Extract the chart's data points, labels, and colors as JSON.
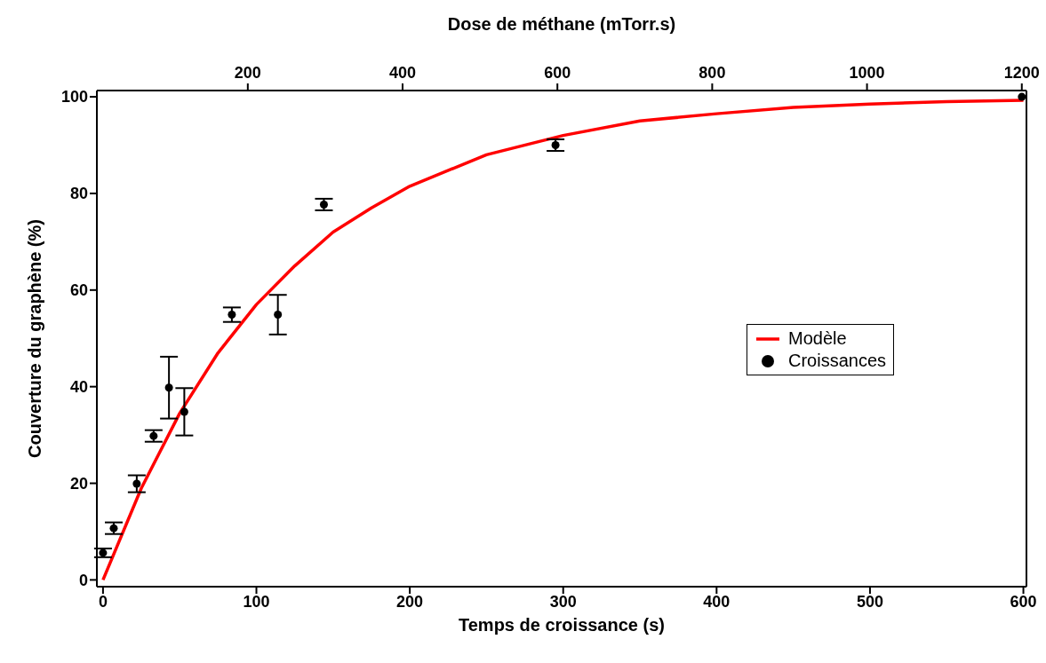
{
  "chart_data": {
    "type": "scatter",
    "xlabel": "Temps de croissance (s)",
    "x2label": "Dose de méthane (mTorr.s)",
    "ylabel": "Couverture du graphène (%)",
    "xlim": [
      -4,
      602
    ],
    "xticks": [
      0,
      100,
      200,
      300,
      400,
      500,
      600
    ],
    "x2lim": [
      5,
      1206
    ],
    "x2ticks": [
      200,
      400,
      600,
      800,
      1000,
      1200
    ],
    "ylim": [
      -1.4,
      101.3
    ],
    "yticks": [
      0,
      20,
      40,
      60,
      80,
      100
    ],
    "grid": false,
    "legend": "right",
    "series": [
      {
        "name": "Modèle",
        "type": "line",
        "color": "#ff0000",
        "marker": "none",
        "line_style": "solid",
        "x": [
          0,
          25,
          50,
          75,
          100,
          125,
          150,
          175,
          200,
          250,
          300,
          350,
          400,
          450,
          500,
          550,
          600
        ],
        "values": [
          0,
          19,
          34.5,
          47,
          57,
          65,
          72,
          77,
          81.5,
          88,
          92,
          95,
          96.5,
          97.8,
          98.5,
          99,
          99.3
        ]
      },
      {
        "name": "Croissances",
        "color": "#000000",
        "marker": "circle",
        "x": [
          0,
          7,
          22,
          33,
          43,
          53,
          84,
          114,
          144,
          295,
          599
        ],
        "values": [
          5.6,
          10.7,
          19.9,
          29.8,
          39.8,
          34.8,
          54.9,
          54.9,
          77.7,
          90,
          100
        ],
        "errors": [
          0.9,
          1.2,
          1.75,
          1.2,
          [
            33.4,
            46.2
          ],
          4.9,
          1.5,
          4.1,
          1.2,
          1.2,
          null
        ]
      }
    ]
  }
}
